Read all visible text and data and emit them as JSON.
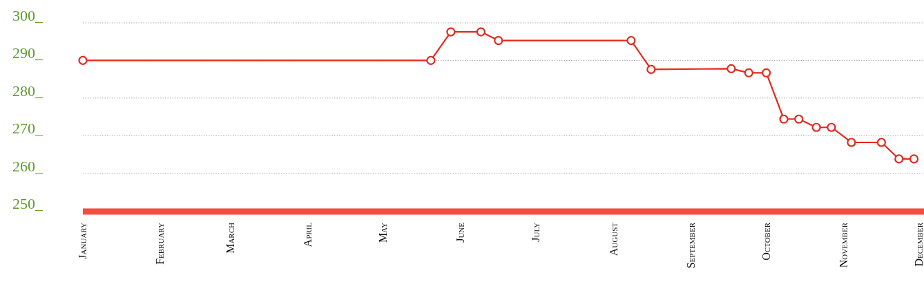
{
  "chart_data": {
    "type": "line",
    "x": [
      "--01-01",
      "--05-20",
      "--05-28",
      "--06-09",
      "--06-16",
      "--08-08",
      "--08-16",
      "--09-17",
      "--09-24",
      "--10-01",
      "--10-08",
      "--10-14",
      "--10-21",
      "--10-27",
      "--11-04",
      "--11-16",
      "--11-23",
      "--11-29"
    ],
    "series": [
      {
        "color": "#e5291c",
        "values": [
          290,
          290,
          297.6,
          297.6,
          295.3,
          295.3,
          287.6,
          287.8,
          286.7,
          286.7,
          274.4,
          274.4,
          272.2,
          272.2,
          268.2,
          268.2,
          263.8,
          263.8
        ]
      }
    ],
    "xlim": [
      "--01-01",
      "--12-03"
    ],
    "xticks": [
      {
        "value": "--01-01",
        "label": "January"
      },
      {
        "value": "--02-01",
        "label": "February"
      },
      {
        "value": "--03-01",
        "label": "March"
      },
      {
        "value": "--04-01",
        "label": "April"
      },
      {
        "value": "--05-01",
        "label": "May"
      },
      {
        "value": "--06-01",
        "label": "June"
      },
      {
        "value": "--07-01",
        "label": "July"
      },
      {
        "value": "--08-01",
        "label": "August"
      },
      {
        "value": "--09-01",
        "label": "September"
      },
      {
        "value": "--10-01",
        "label": "October"
      },
      {
        "value": "--11-01",
        "label": "November"
      },
      {
        "value": "--12-01",
        "label": "December"
      }
    ],
    "ylim": [
      250,
      300
    ],
    "yticks": [
      {
        "value": 250,
        "label": "250_"
      },
      {
        "value": 260,
        "label": "260_"
      },
      {
        "value": 270,
        "label": "270_"
      },
      {
        "value": 280,
        "label": "280_"
      },
      {
        "value": 290,
        "label": "290_"
      },
      {
        "value": 300,
        "label": "300_"
      }
    ],
    "grid": "y",
    "marker": "circle",
    "line_style": "solid"
  }
}
